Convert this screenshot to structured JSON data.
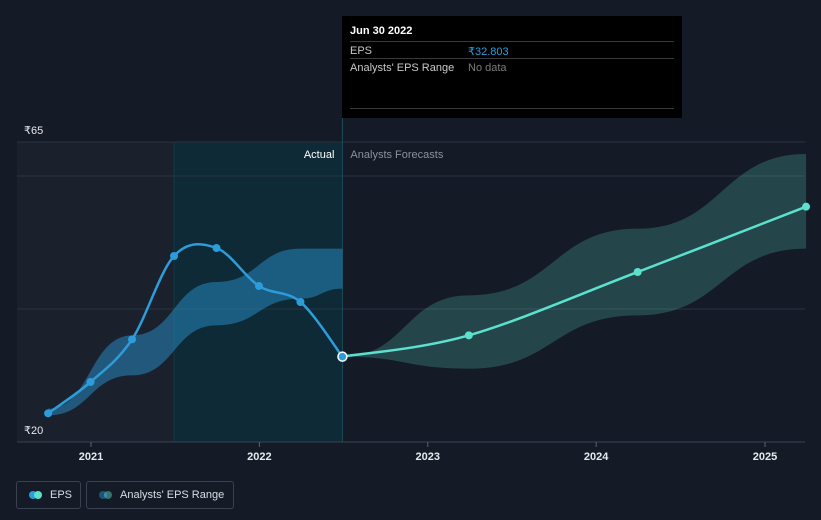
{
  "tooltip": {
    "date": "Jun 30 2022",
    "eps_label": "EPS",
    "eps_value": "₹32.803",
    "range_label": "Analysts' EPS Range",
    "range_value": "No data"
  },
  "chart_data": {
    "type": "line",
    "y_tick_labels": [
      "₹65",
      "₹20"
    ],
    "ylim": [
      20,
      65
    ],
    "x_tick_labels": [
      "2021",
      "2022",
      "2023",
      "2024",
      "2025"
    ],
    "region_labels": {
      "actual": "Actual",
      "forecast": "Analysts Forecasts"
    },
    "grid": true,
    "series": [
      {
        "name": "EPS",
        "color": "#2d9cdb",
        "x": [
          "2020-09-30",
          "2020-12-31",
          "2021-03-31",
          "2021-06-30",
          "2021-09-30",
          "2021-12-31",
          "2022-03-31",
          "2022-06-30"
        ],
        "values": [
          24.3,
          29.0,
          35.4,
          47.9,
          49.1,
          43.4,
          41.0,
          32.8
        ]
      },
      {
        "name": "EPS forecast",
        "color": "#5ce1cf",
        "x": [
          "2022-06-30",
          "2023-03-31",
          "2024-03-31",
          "2025-03-31"
        ],
        "values": [
          32.8,
          36.0,
          45.5,
          55.3
        ]
      }
    ],
    "bands": [
      {
        "name": "Analysts' EPS Range (past)",
        "color": "#2d9cdb",
        "x": [
          "2020-09-30",
          "2021-03-31",
          "2021-09-30",
          "2022-03-31",
          "2022-06-30"
        ],
        "low": [
          24.0,
          30.0,
          37.5,
          41.5,
          43.0
        ],
        "high": [
          25.0,
          36.0,
          44.0,
          49.0,
          49.0
        ]
      },
      {
        "name": "Analysts' EPS Range (forecast)",
        "color": "#5ce1cf",
        "x": [
          "2022-06-30",
          "2023-03-31",
          "2024-03-31",
          "2025-03-31"
        ],
        "low": [
          32.8,
          31.0,
          39.0,
          49.0
        ],
        "high": [
          32.8,
          42.0,
          52.0,
          63.2
        ]
      }
    ],
    "highlight_date": "2022-06-30"
  },
  "legend": {
    "items": [
      {
        "label": "EPS",
        "color": "#2d9cdb",
        "color2": "#5ce1cf"
      },
      {
        "label": "Analysts' EPS Range",
        "color": "#2d9cdb",
        "color2": "#5ce1cf"
      }
    ]
  }
}
